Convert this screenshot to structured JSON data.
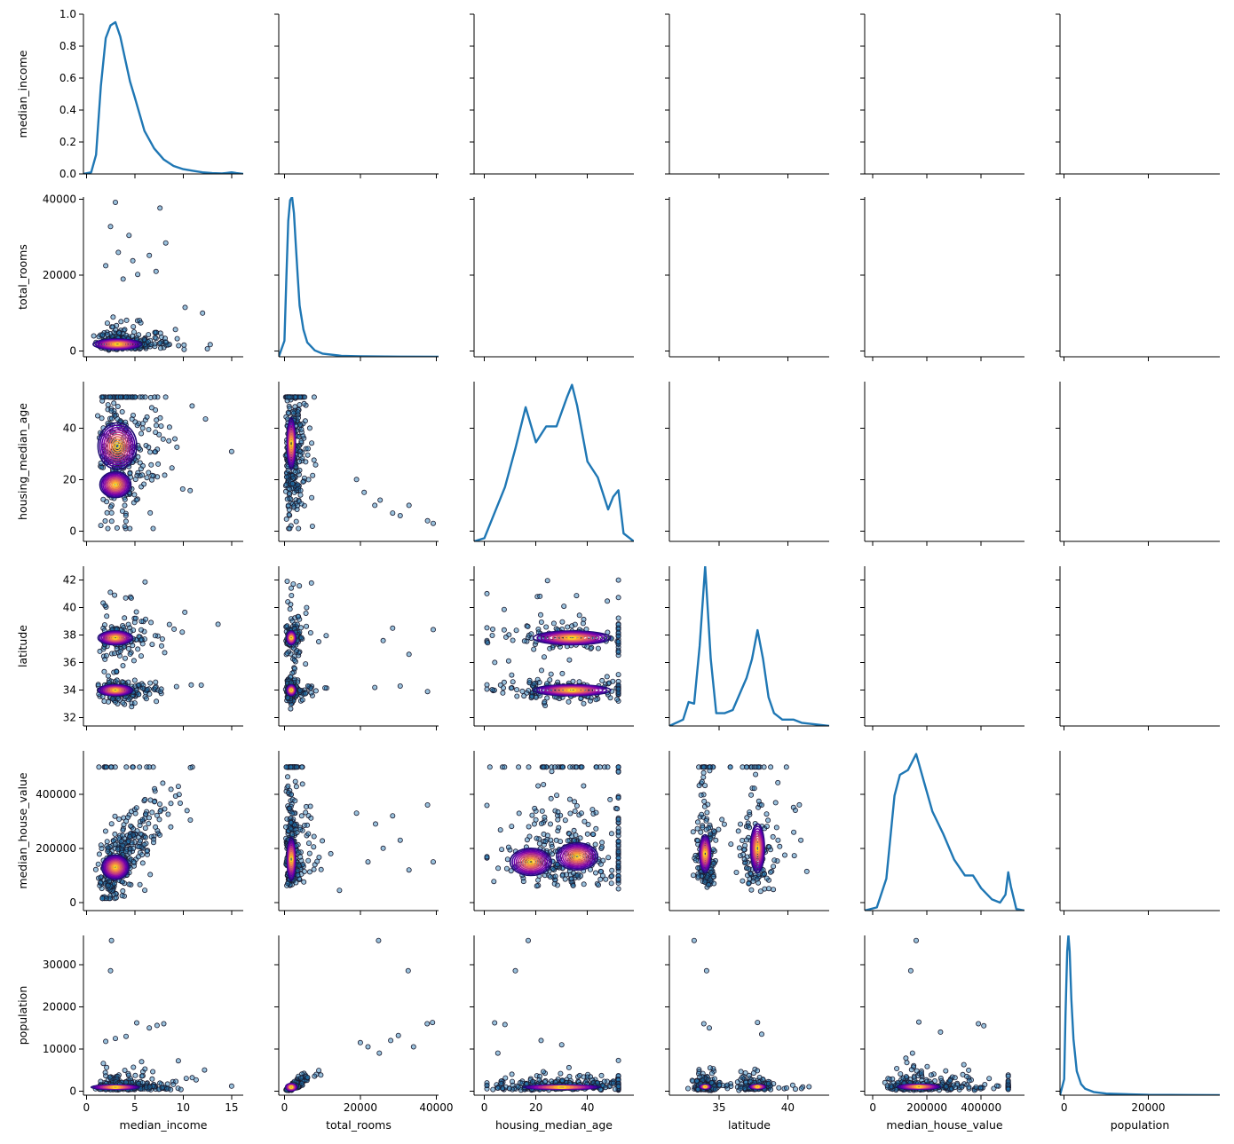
{
  "chart_data": {
    "type": "pairplot",
    "variables": [
      "median_income",
      "total_rooms",
      "housing_median_age",
      "latitude",
      "median_house_value",
      "population"
    ],
    "axes": {
      "median_income": {
        "range": [
          -0.3,
          16.2
        ],
        "ticks": [
          0,
          5,
          10,
          15
        ],
        "tick_labels": [
          "0",
          "5",
          "10",
          "15"
        ]
      },
      "total_rooms": {
        "range": [
          -1500,
          40600
        ],
        "ticks": [
          0,
          20000,
          40000
        ],
        "tick_labels": [
          "0",
          "20000",
          "40000"
        ]
      },
      "housing_median_age": {
        "range": [
          -4,
          58
        ],
        "ticks": [
          0,
          20,
          40
        ],
        "tick_labels": [
          "0",
          "20",
          "40"
        ]
      },
      "latitude": {
        "range": [
          31.4,
          43.0
        ],
        "ticks": [
          32,
          34,
          36,
          38,
          40,
          42
        ],
        "x_ticks": [
          35,
          40
        ],
        "tick_labels": [
          "32",
          "34",
          "36",
          "38",
          "40",
          "42"
        ],
        "x_tick_labels": [
          "35",
          "40"
        ]
      },
      "median_house_value": {
        "range": [
          -30000,
          560000
        ],
        "ticks": [
          0,
          200000,
          400000
        ],
        "tick_labels": [
          "0",
          "200000",
          "400000"
        ]
      },
      "population": {
        "range": [
          -1000,
          37000
        ],
        "ticks": [
          0,
          10000,
          20000,
          30000
        ],
        "x_ticks": [
          0,
          20000
        ],
        "tick_labels": [
          "0",
          "10000",
          "20000",
          "30000"
        ],
        "x_tick_labels": [
          "0",
          "20000"
        ]
      }
    },
    "diag_density_axis": {
      "range": [
        0,
        1.0
      ],
      "ticks": [
        0,
        0.2,
        0.4,
        0.6,
        0.8,
        1.0
      ],
      "tick_labels": [
        "0.0",
        "0.2",
        "0.4",
        "0.6",
        "0.8",
        "1.0"
      ]
    },
    "kde_curves": {
      "median_income": {
        "x": [
          -0.3,
          0.5,
          1,
          1.5,
          2,
          2.5,
          3,
          3.5,
          4,
          4.5,
          5,
          6,
          7,
          8,
          9,
          10,
          11,
          12,
          13,
          14,
          15,
          15.5,
          16.2
        ],
        "y": [
          0,
          0.01,
          0.12,
          0.55,
          0.85,
          0.93,
          0.95,
          0.86,
          0.72,
          0.58,
          0.48,
          0.27,
          0.16,
          0.09,
          0.05,
          0.03,
          0.02,
          0.01,
          0.005,
          0.003,
          0.01,
          0.005,
          0
        ]
      },
      "total_rooms": {
        "x": [
          -1500,
          0,
          500,
          1000,
          1500,
          2000,
          2500,
          3000,
          3500,
          4000,
          5000,
          6000,
          8000,
          10000,
          15000,
          20000,
          30000,
          40000,
          40600
        ],
        "y": [
          0,
          0.1,
          0.5,
          0.85,
          0.98,
          1.0,
          0.9,
          0.7,
          0.5,
          0.32,
          0.17,
          0.09,
          0.04,
          0.02,
          0.006,
          0.003,
          0.001,
          0,
          0
        ]
      },
      "housing_median_age": {
        "x": [
          -4,
          0,
          4,
          8,
          12,
          16,
          20,
          24,
          28,
          32,
          34,
          36,
          40,
          44,
          48,
          50,
          52,
          54,
          58
        ],
        "y": [
          0,
          0.02,
          0.18,
          0.34,
          0.58,
          0.84,
          0.62,
          0.72,
          0.72,
          0.9,
          0.98,
          0.85,
          0.5,
          0.4,
          0.2,
          0.28,
          0.32,
          0.05,
          0
        ]
      },
      "latitude": {
        "x": [
          31.4,
          32.4,
          32.8,
          33.2,
          33.6,
          34.0,
          34.4,
          34.8,
          35.4,
          36.0,
          36.6,
          37.0,
          37.4,
          37.8,
          38.2,
          38.6,
          39.0,
          39.6,
          40.4,
          41.0,
          42.0,
          43.0
        ],
        "y": [
          0,
          0.04,
          0.15,
          0.14,
          0.5,
          1.0,
          0.42,
          0.08,
          0.08,
          0.1,
          0.22,
          0.3,
          0.42,
          0.6,
          0.42,
          0.18,
          0.08,
          0.04,
          0.04,
          0.02,
          0.01,
          0
        ]
      },
      "median_house_value": {
        "x": [
          -30000,
          15000,
          50000,
          80000,
          100000,
          130000,
          160000,
          190000,
          220000,
          260000,
          300000,
          340000,
          370000,
          400000,
          440000,
          470000,
          490000,
          500000,
          510000,
          530000,
          560000
        ],
        "y": [
          0,
          0.02,
          0.2,
          0.72,
          0.85,
          0.88,
          0.98,
          0.8,
          0.62,
          0.48,
          0.32,
          0.22,
          0.22,
          0.14,
          0.07,
          0.05,
          0.1,
          0.24,
          0.15,
          0.01,
          0
        ]
      },
      "population": {
        "x": [
          -1000,
          0,
          300,
          700,
          1000,
          1300,
          1700,
          2200,
          3000,
          4000,
          5000,
          7000,
          10000,
          20000,
          30000,
          37000
        ],
        "y": [
          0,
          0.1,
          0.5,
          0.9,
          1.0,
          0.9,
          0.6,
          0.35,
          0.15,
          0.07,
          0.04,
          0.02,
          0.01,
          0.002,
          0.001,
          0
        ]
      }
    },
    "outlier_points": {
      "median_income|total_rooms": [
        [
          3.0,
          39200
        ],
        [
          7.6,
          37700
        ],
        [
          2.5,
          32800
        ],
        [
          4.4,
          30500
        ],
        [
          8.2,
          28500
        ],
        [
          3.3,
          26000
        ],
        [
          6.5,
          25200
        ],
        [
          4.8,
          23800
        ],
        [
          2.0,
          22500
        ],
        [
          7.2,
          21000
        ],
        [
          5.3,
          20200
        ],
        [
          3.8,
          19000
        ],
        [
          10.2,
          11500
        ],
        [
          12.0,
          10000
        ]
      ],
      "median_income|population": [
        [
          2.6,
          35800
        ],
        [
          2.5,
          28600
        ],
        [
          5.2,
          16200
        ],
        [
          7.3,
          15600
        ],
        [
          8.0,
          16000
        ],
        [
          6.5,
          15000
        ],
        [
          3.0,
          12500
        ],
        [
          2.0,
          11800
        ],
        [
          4.1,
          13000
        ],
        [
          9.5,
          7200
        ],
        [
          12.2,
          5000
        ]
      ],
      "total_rooms|population": [
        [
          24800,
          35800
        ],
        [
          32600,
          28600
        ],
        [
          39000,
          16300
        ],
        [
          37600,
          16000
        ],
        [
          30000,
          13200
        ],
        [
          28000,
          12000
        ],
        [
          34000,
          10500
        ],
        [
          20000,
          11500
        ],
        [
          25000,
          9000
        ],
        [
          22000,
          10500
        ]
      ],
      "total_rooms|housing_median_age": [
        [
          39200,
          3
        ],
        [
          37700,
          4
        ],
        [
          32800,
          10
        ],
        [
          30500,
          6
        ],
        [
          28500,
          7
        ],
        [
          25200,
          12
        ],
        [
          21000,
          15
        ],
        [
          19000,
          20
        ],
        [
          23800,
          10
        ]
      ],
      "total_rooms|latitude": [
        [
          39200,
          38.4
        ],
        [
          37700,
          33.9
        ],
        [
          32800,
          36.6
        ],
        [
          30500,
          34.3
        ],
        [
          28500,
          38.5
        ],
        [
          26000,
          37.6
        ],
        [
          23800,
          34.2
        ]
      ],
      "total_rooms|median_house_value": [
        [
          39200,
          150000
        ],
        [
          37700,
          360000
        ],
        [
          32800,
          120000
        ],
        [
          30500,
          230000
        ],
        [
          28500,
          320000
        ],
        [
          26000,
          200000
        ],
        [
          24000,
          290000
        ],
        [
          22000,
          150000
        ],
        [
          19000,
          330000
        ]
      ],
      "housing_median_age|population": [
        [
          17,
          35800
        ],
        [
          12,
          28600
        ],
        [
          4,
          16200
        ],
        [
          8,
          15800
        ],
        [
          22,
          12000
        ],
        [
          30,
          11000
        ]
      ],
      "latitude|population": [
        [
          33.2,
          35800
        ],
        [
          34.1,
          28600
        ],
        [
          37.8,
          16300
        ],
        [
          33.9,
          16000
        ],
        [
          34.3,
          15000
        ],
        [
          38.1,
          13500
        ]
      ],
      "median_house_value|population": [
        [
          160000,
          35800
        ],
        [
          140000,
          28600
        ],
        [
          170000,
          16400
        ],
        [
          390000,
          16000
        ],
        [
          410000,
          15500
        ],
        [
          250000,
          14000
        ]
      ]
    },
    "title": "",
    "legend": "none"
  }
}
